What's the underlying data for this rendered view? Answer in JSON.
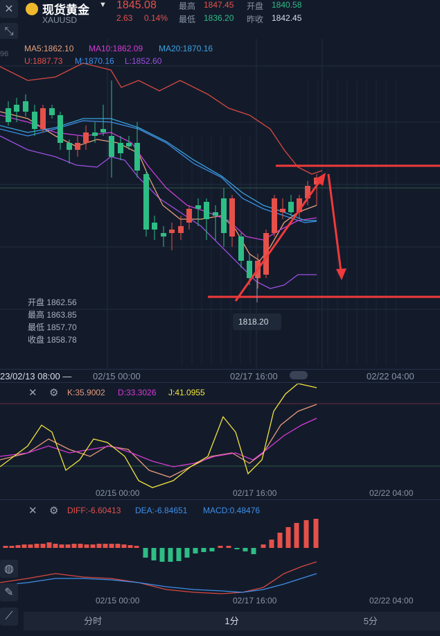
{
  "header": {
    "name": "现货黄金",
    "symbol": "XAUUSD",
    "price": "1845.08",
    "change": "2.63",
    "change_pct": "0.14%",
    "high_label": "最高",
    "high": "1847.45",
    "low_label": "最低",
    "low": "1836.20",
    "open_label": "开盘",
    "open": "1840.58",
    "prev_close_label": "昨收",
    "prev_close": "1842.45"
  },
  "indicators": {
    "ma5": "MA5:1862.10",
    "ma10": "MA10:1862.09",
    "ma20": "MA20:1870.16",
    "boll_u": "U:1887.73",
    "boll_m": "M:1870.16",
    "boll_l": "L:1852.60",
    "side_value": "96"
  },
  "ohlc_tooltip": {
    "open": "开盘 1862.56",
    "high": "最高 1863.85",
    "low": "最低 1857.70",
    "close": "收盘 1858.78"
  },
  "low_marker": "1818.20",
  "time_axis": {
    "cursor_label": "23/02/13 08:00 —",
    "t1": "02/15 00:00",
    "t2": "02/17 16:00",
    "t3": "02/22 04:00"
  },
  "kdj": {
    "k": "K:35.9002",
    "d": "D:33.3026",
    "j": "J:41.0955",
    "t1": "02/15 00:00",
    "t2": "02/17 16:00",
    "t3": "02/22 04:00"
  },
  "macd": {
    "diff": "DIFF:-6.60413",
    "dea": "DEA:-6.84651",
    "macd": "MACD:0.48476",
    "t1": "02/15 00:00",
    "t2": "02/17 16:00",
    "t3": "02/22 04:00"
  },
  "tabs": [
    "分时",
    "1分",
    "5分"
  ],
  "colors": {
    "up": "#e5514a",
    "down": "#2ebd85",
    "ma5": "#e8a07a",
    "ma10": "#c93fd8",
    "ma20": "#3aa3e0",
    "boll_u": "#d9483f",
    "boll_m": "#3d8fe8",
    "boll_l": "#9b4fe0",
    "kdj_k": "#e89a7a",
    "kdj_d": "#d63ad4",
    "kdj_j": "#f2e43c",
    "annotation": "#f03a3a"
  }
}
